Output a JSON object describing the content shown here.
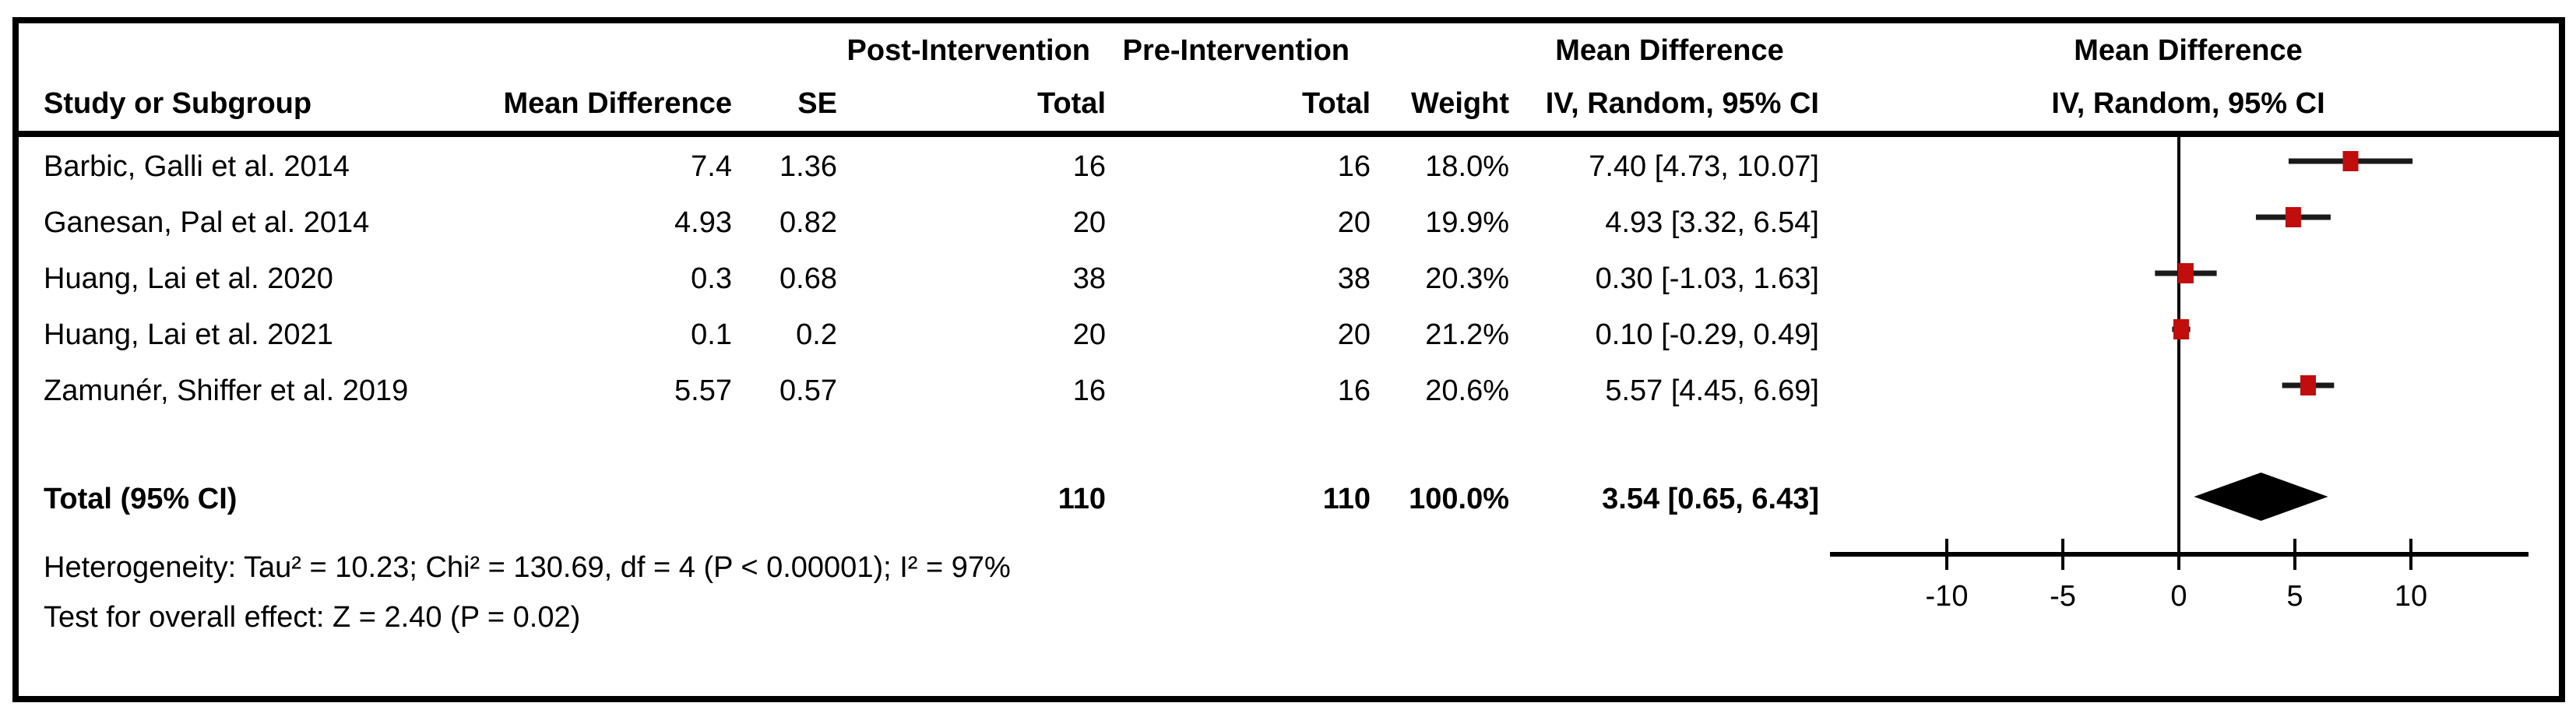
{
  "colors": {
    "marker_red": "#c00d0d",
    "whisker": "#1a1a1a",
    "diamond": "#000000",
    "axis": "#000000",
    "text": "#000000",
    "border": "#000000"
  },
  "header": {
    "group_post": "Post-Intervention",
    "group_pre": "Pre-Intervention",
    "group_md_col": "Mean Difference",
    "group_md_plot": "Mean Difference",
    "study": "Study or Subgroup",
    "md": "Mean Difference",
    "se": "SE",
    "total_post": "Total",
    "total_pre": "Total",
    "weight": "Weight",
    "iv_col": "IV, Random, 95% CI",
    "iv_plot": "IV, Random, 95% CI"
  },
  "rows": [
    {
      "study": "Barbic, Galli et al. 2014",
      "md": "7.4",
      "se": "1.36",
      "post_total": "16",
      "pre_total": "16",
      "weight": "18.0%",
      "ci_text": "7.40 [4.73, 10.07]",
      "estimate": 7.4,
      "ci_low": 4.73,
      "ci_high": 10.07
    },
    {
      "study": "Ganesan, Pal et al. 2014",
      "md": "4.93",
      "se": "0.82",
      "post_total": "20",
      "pre_total": "20",
      "weight": "19.9%",
      "ci_text": "4.93 [3.32, 6.54]",
      "estimate": 4.93,
      "ci_low": 3.32,
      "ci_high": 6.54
    },
    {
      "study": "Huang, Lai et al. 2020",
      "md": "0.3",
      "se": "0.68",
      "post_total": "38",
      "pre_total": "38",
      "weight": "20.3%",
      "ci_text": "0.30 [-1.03, 1.63]",
      "estimate": 0.3,
      "ci_low": -1.03,
      "ci_high": 1.63
    },
    {
      "study": "Huang, Lai et al. 2021",
      "md": "0.1",
      "se": "0.2",
      "post_total": "20",
      "pre_total": "20",
      "weight": "21.2%",
      "ci_text": "0.10 [-0.29, 0.49]",
      "estimate": 0.1,
      "ci_low": -0.29,
      "ci_high": 0.49
    },
    {
      "study": "Zamunér, Shiffer et al. 2019",
      "md": "5.57",
      "se": "0.57",
      "post_total": "16",
      "pre_total": "16",
      "weight": "20.6%",
      "ci_text": "5.57 [4.45, 6.69]",
      "estimate": 5.57,
      "ci_low": 4.45,
      "ci_high": 6.69
    }
  ],
  "total": {
    "label": "Total (95% CI)",
    "post_total": "110",
    "pre_total": "110",
    "weight": "100.0%",
    "ci_text": "3.54 [0.65, 6.43]",
    "estimate": 3.54,
    "ci_low": 0.65,
    "ci_high": 6.43
  },
  "footer": {
    "heterogeneity": "Heterogeneity: Tau² = 10.23; Chi² = 130.69, df = 4 (P < 0.00001); I² = 97%",
    "overall_effect": "Test for overall effect: Z = 2.40 (P = 0.02)"
  },
  "chart_data": {
    "type": "scatter",
    "subtype": "forest-plot",
    "title": "Mean Difference",
    "xlabel": "IV, Random, 95% CI",
    "x_ticks": [
      -10,
      -5,
      0,
      5,
      10
    ],
    "xlim": [
      -15,
      15
    ],
    "zero_line": 0,
    "series": [
      {
        "name": "Barbic, Galli et al. 2014",
        "estimate": 7.4,
        "ci_low": 4.73,
        "ci_high": 10.07,
        "weight_pct": 18.0
      },
      {
        "name": "Ganesan, Pal et al. 2014",
        "estimate": 4.93,
        "ci_low": 3.32,
        "ci_high": 6.54,
        "weight_pct": 19.9
      },
      {
        "name": "Huang, Lai et al. 2020",
        "estimate": 0.3,
        "ci_low": -1.03,
        "ci_high": 1.63,
        "weight_pct": 20.3
      },
      {
        "name": "Huang, Lai et al. 2021",
        "estimate": 0.1,
        "ci_low": -0.29,
        "ci_high": 0.49,
        "weight_pct": 21.2
      },
      {
        "name": "Zamunér, Shiffer et al. 2019",
        "estimate": 5.57,
        "ci_low": 4.45,
        "ci_high": 6.69,
        "weight_pct": 20.6
      }
    ],
    "overall": {
      "name": "Total (95% CI)",
      "estimate": 3.54,
      "ci_low": 0.65,
      "ci_high": 6.43,
      "weight_pct": 100.0
    }
  }
}
